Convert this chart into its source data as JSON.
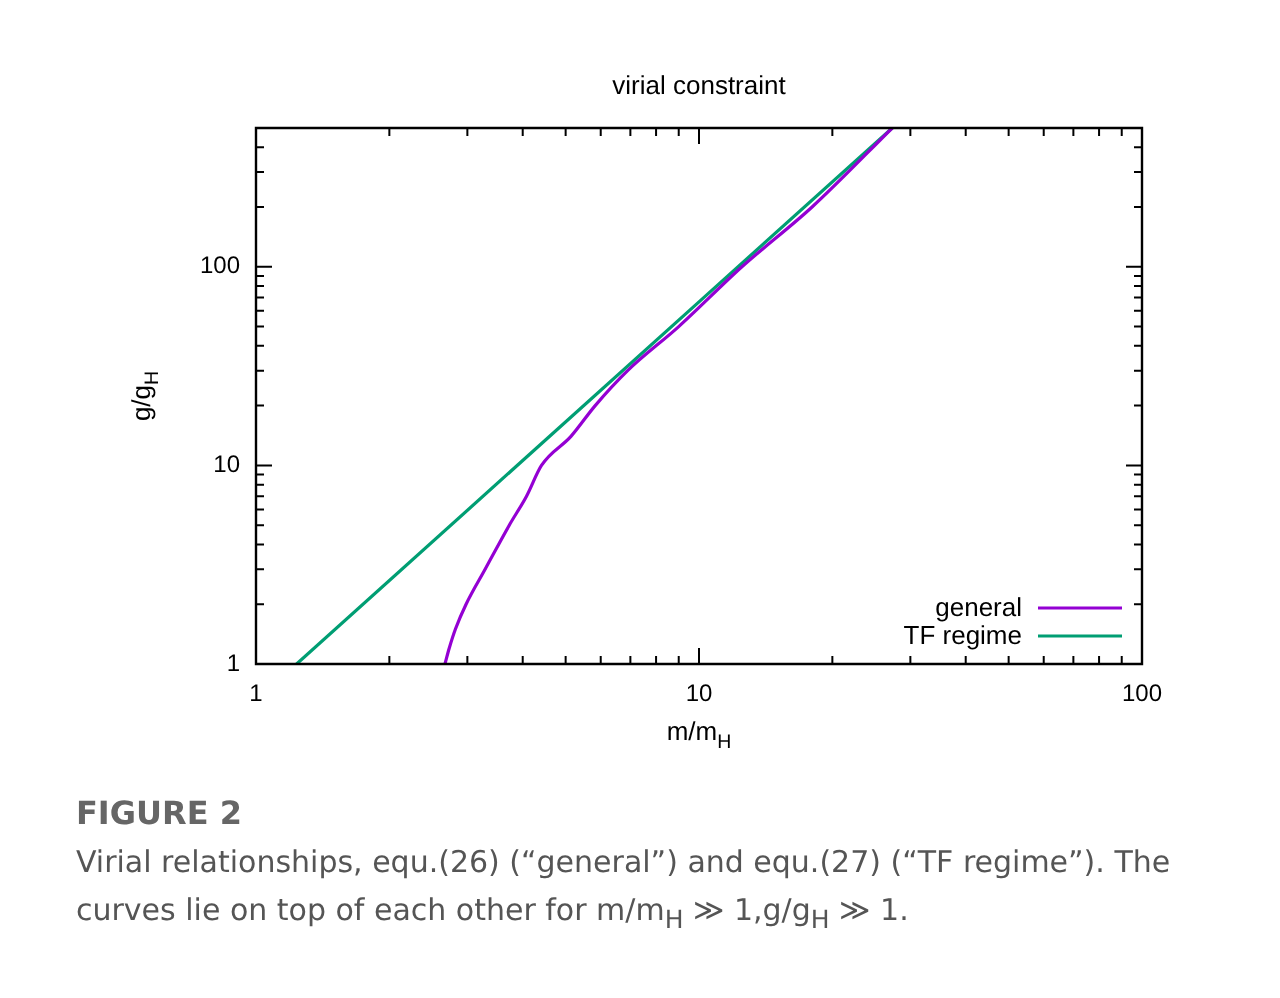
{
  "chart_data": {
    "type": "line",
    "title": "virial constraint",
    "xlabel": "m/m$_{H}$",
    "ylabel": "g/g$_{H}$",
    "log": "xy",
    "xlim": [
      1,
      100
    ],
    "ylim": [
      1,
      500
    ],
    "xticks": [
      1,
      {
        "value": 2,
        "label": null
      },
      {
        "value": 3,
        "label": null
      },
      {
        "value": 4,
        "label": null
      },
      {
        "value": 5,
        "label": null
      },
      {
        "value": 6,
        "label": null
      },
      {
        "value": 7,
        "label": null
      },
      {
        "value": 8,
        "label": null
      },
      {
        "value": 9,
        "label": null
      },
      10,
      {
        "value": 20,
        "label": null
      },
      {
        "value": 30,
        "label": null
      },
      {
        "value": 40,
        "label": null
      },
      {
        "value": 50,
        "label": null
      },
      {
        "value": 60,
        "label": null
      },
      {
        "value": 70,
        "label": null
      },
      {
        "value": 80,
        "label": null
      },
      {
        "value": 90,
        "label": null
      },
      100
    ],
    "yticks": [
      1,
      {
        "value": 2,
        "label": null
      },
      {
        "value": 3,
        "label": null
      },
      {
        "value": 4,
        "label": null
      },
      {
        "value": 5,
        "label": null
      },
      {
        "value": 6,
        "label": null
      },
      {
        "value": 7,
        "label": null
      },
      {
        "value": 8,
        "label": null
      },
      {
        "value": 9,
        "label": null
      },
      10,
      {
        "value": 20,
        "label": null
      },
      {
        "value": 30,
        "label": null
      },
      {
        "value": 40,
        "label": null
      },
      {
        "value": 50,
        "label": null
      },
      {
        "value": 60,
        "label": null
      },
      {
        "value": 70,
        "label": null
      },
      {
        "value": 80,
        "label": null
      },
      {
        "value": 90,
        "label": null
      },
      100,
      {
        "value": 200,
        "label": null
      },
      {
        "value": 300,
        "label": null
      },
      {
        "value": 400,
        "label": null
      },
      {
        "value": 500,
        "label": null
      }
    ],
    "grid": false,
    "legend": "bottom right",
    "marker": "none",
    "line_style": "solid",
    "series": [
      {
        "name": "general",
        "color": "#9400d3",
        "x": [
          2.67,
          2.73,
          2.82,
          2.98,
          3.29,
          3.73,
          4.08,
          4.41,
          5.14,
          5.83,
          6.9,
          9.0,
          12.5,
          18,
          27.3
        ],
        "values": [
          1,
          1.2,
          1.5,
          2,
          3,
          5,
          7,
          10,
          14,
          20,
          30,
          50,
          100,
          200,
          500
        ]
      },
      {
        "name": "TF regime",
        "color": "#009e73",
        "x": [
          1.235,
          27.3
        ],
        "values": [
          1,
          500
        ]
      }
    ],
    "annotations": [
      "FIGURE 2",
      "Virial relationships, equ.(26) (“general”) and equ.(27) (“TF regime”). The curves lie on top of each other for m/m$_{H}$ ≫ 1,g/g$_{H}$ ≫ 1."
    ]
  }
}
